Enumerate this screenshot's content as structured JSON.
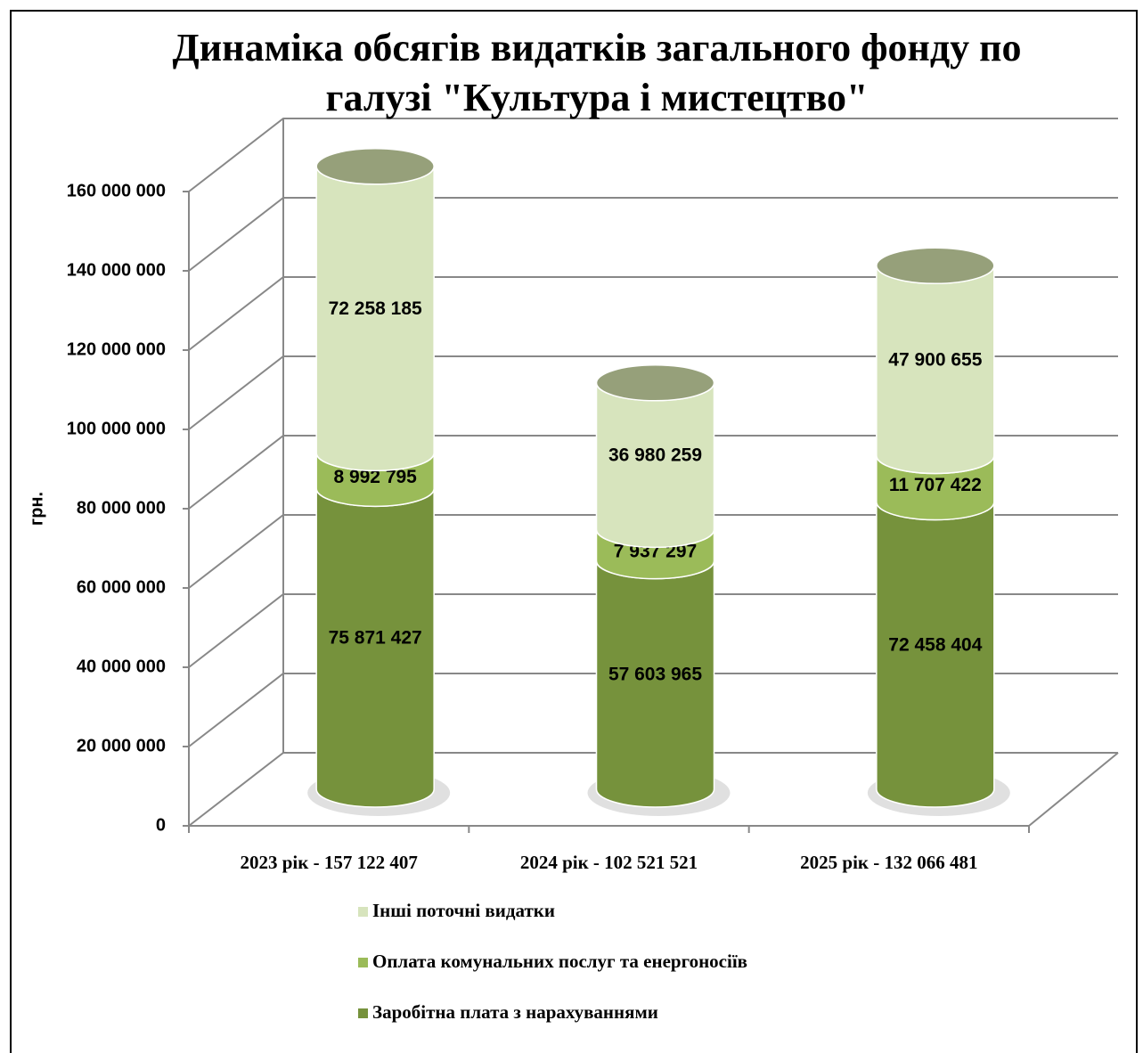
{
  "chart_data": {
    "type": "bar",
    "title": "Динаміка обсягів видатків загального фонду по галузі \"Культура і мистецтво\"",
    "ylabel": "грн.",
    "categories": [
      "2023 рік - 157 122 407",
      "2024 рік - 102 521 521",
      "2025 рік - 132 066 481"
    ],
    "series": [
      {
        "name": "Заробітна плата з нарахуваннями",
        "color": "#76923c",
        "values": [
          75871427,
          57603965,
          72458404
        ],
        "value_labels": [
          "75 871 427",
          "57 603 965",
          "72 458 404"
        ]
      },
      {
        "name": "Оплата комунальних послуг та енергоносіїв",
        "color": "#9bbb59",
        "values": [
          8992795,
          7937297,
          11707422
        ],
        "value_labels": [
          "8 992 795",
          "7 937 297",
          "11 707 422"
        ]
      },
      {
        "name": "Інші поточні видатки",
        "color": "#d7e4bd",
        "values": [
          72258185,
          36980259,
          47900655
        ],
        "value_labels": [
          "72 258 185",
          "36 980 259",
          "47 900 655"
        ]
      }
    ],
    "ylim": [
      0,
      160000000
    ],
    "yticks": [
      0,
      {
        "value": 20000000,
        "label": "20 000 000"
      },
      {
        "value": 40000000,
        "label": "40 000 000"
      },
      {
        "value": 60000000,
        "label": "60 000 000"
      },
      {
        "value": 80000000,
        "label": "80 000 000"
      },
      {
        "value": 100000000,
        "label": "100 000 000"
      },
      {
        "value": 120000000,
        "label": "120 000 000"
      },
      {
        "value": 140000000,
        "label": "140 000 000"
      },
      {
        "value": 160000000,
        "label": "160 000 000"
      }
    ],
    "grid": true,
    "stacked": true
  }
}
